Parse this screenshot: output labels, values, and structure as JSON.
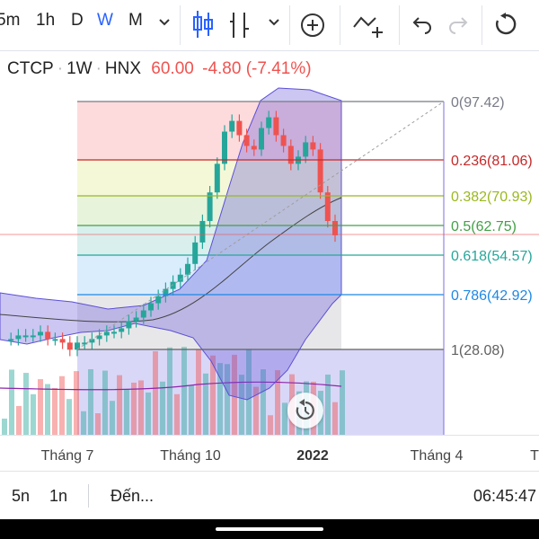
{
  "toolbar": {
    "intervals": [
      "5m",
      "1h",
      "D",
      "W",
      "M"
    ],
    "active_interval": "W",
    "icons": [
      "chevron-down-icon",
      "candles-icon",
      "indicators-icon",
      "chevron-down-icon",
      "add-circle-icon",
      "compare-icon",
      "undo-icon",
      "redo-icon",
      "reload-icon"
    ]
  },
  "legend": {
    "symbol": "CTCP",
    "interval": "1W",
    "exchange": "HNX",
    "price": "60.00",
    "change": "-4.80 (-7.41%)",
    "change_color": "#ef5350"
  },
  "fib_levels": [
    {
      "label": "0(97.42)",
      "color": "#787b86",
      "fill": "rgba(242,54,69,0.18)"
    },
    {
      "label": "0.236(81.06)",
      "color": "#c62828",
      "fill": "rgba(205,220,57,0.20)"
    },
    {
      "label": "0.382(70.93)",
      "color": "#9ab81f",
      "fill": "rgba(139,195,74,0.20)"
    },
    {
      "label": "0.5(62.75)",
      "color": "#43a047",
      "fill": "rgba(38,166,154,0.18)"
    },
    {
      "label": "0.618(54.57)",
      "color": "#26a69a",
      "fill": "rgba(66,165,245,0.20)"
    },
    {
      "label": "0.786(42.92)",
      "color": "#1e88e5",
      "fill": "rgba(120,123,134,0.18)"
    },
    {
      "label": "1(28.08)",
      "color": "#616161",
      "fill": "rgba(120,110,230,0.28)"
    }
  ],
  "colors": {
    "up": "#26a69a",
    "down": "#ef5350",
    "band": "#5c4fd6",
    "ma": "#444444",
    "vol_ma": "#8e24aa",
    "price_line": "#ef5350"
  },
  "x_axis": {
    "labels": [
      "Tháng 7",
      "Tháng 10",
      "2022",
      "Tháng 4",
      "T"
    ],
    "bold": "2022"
  },
  "bottom_bar": {
    "range_5y": "5n",
    "range_1y": "1n",
    "goto": "Đến...",
    "time": "06:45:47"
  }
}
